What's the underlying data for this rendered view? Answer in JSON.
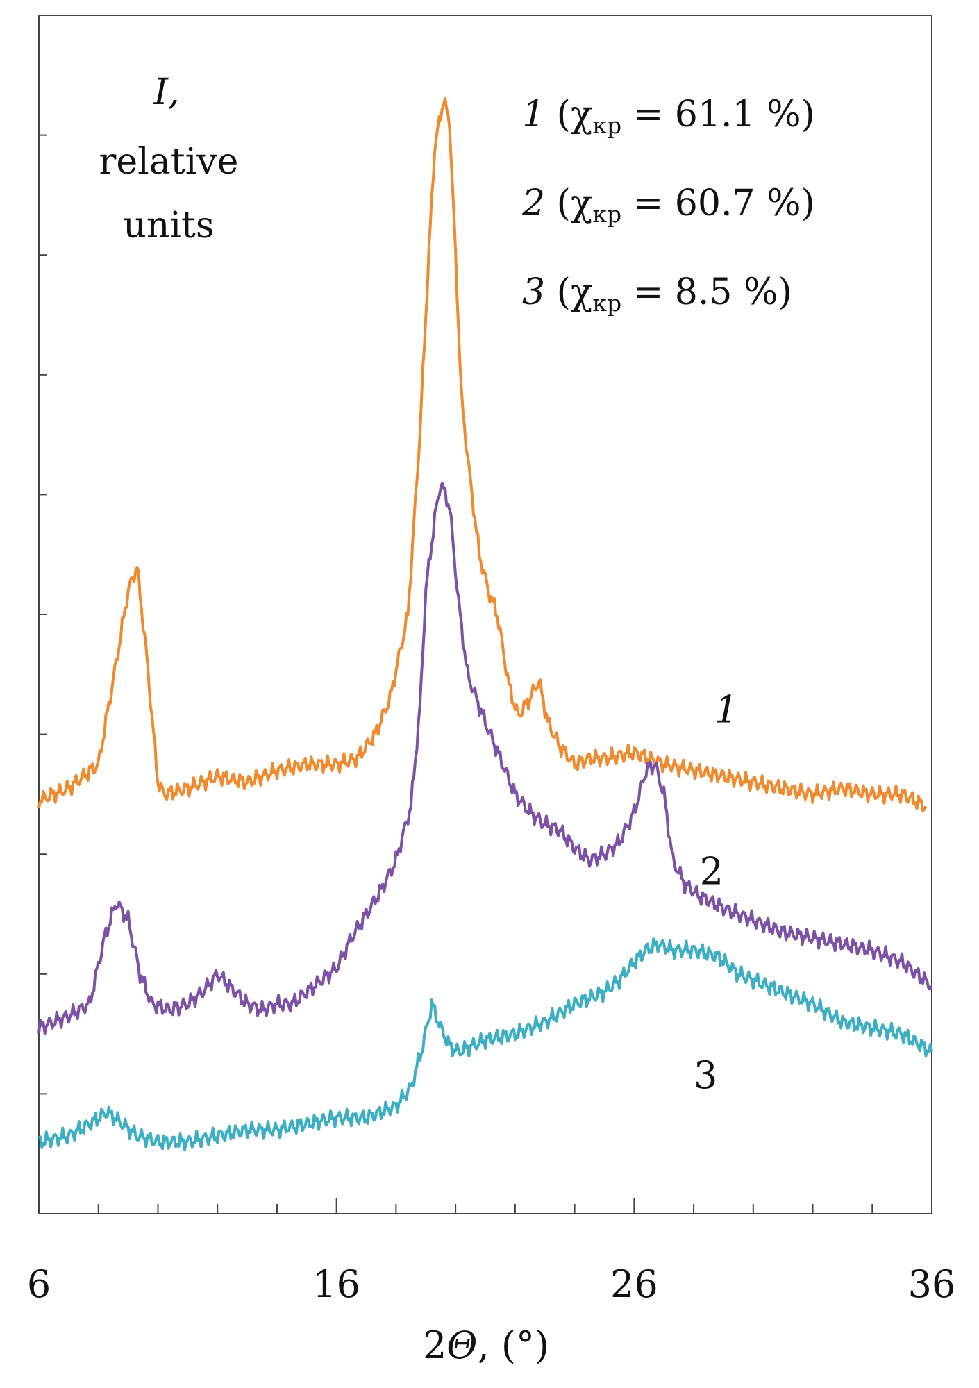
{
  "chart_data": {
    "type": "line",
    "title": "",
    "xlabel": {
      "prefix": "2",
      "symbol": "Θ",
      "suffix": ", (°)"
    },
    "ylabel": {
      "symbol": "I,",
      "line1": "relative",
      "line2": "units"
    },
    "xlim": [
      6,
      36
    ],
    "ylim": [
      0,
      10
    ],
    "x_ticks": [
      6,
      16,
      26,
      36
    ],
    "x_tick_labels": [
      "6",
      "16",
      "26",
      "36"
    ],
    "grid": false,
    "legend_position": "top-right",
    "legend": [
      {
        "num": "1",
        "open": " (χ",
        "sub": "кр",
        "close": " = 61.1 %)"
      },
      {
        "num": "2",
        "open": " (χ",
        "sub": "кр",
        "close": " = 60.7 %)"
      },
      {
        "num": "3",
        "open": " (χ",
        "sub": "кр",
        "close": " = 8.5 %)"
      }
    ],
    "series": [
      {
        "name": "1",
        "color": "#F08A2F",
        "x": [
          6,
          7,
          8,
          8.6,
          9.0,
          9.3,
          9.6,
          10.0,
          10.2,
          11,
          12,
          13,
          14,
          15,
          16,
          16.7,
          17.3,
          17.8,
          18.4,
          18.8,
          19.1,
          19.3,
          19.6,
          19.8,
          20.0,
          20.2,
          20.5,
          20.8,
          21.1,
          21.4,
          21.8,
          22.1,
          22.5,
          22.8,
          23.1,
          23.5,
          24.0,
          24.5,
          25.0,
          26,
          27,
          28,
          29,
          30,
          31,
          32,
          33,
          34,
          35,
          35.8
        ],
        "y": [
          3.45,
          3.55,
          3.75,
          4.6,
          5.2,
          5.4,
          4.7,
          3.6,
          3.5,
          3.55,
          3.65,
          3.6,
          3.7,
          3.75,
          3.75,
          3.8,
          4.0,
          4.3,
          5.0,
          6.5,
          8.0,
          8.9,
          9.3,
          9.1,
          8.0,
          6.8,
          6.1,
          5.5,
          5.2,
          5.0,
          4.4,
          4.15,
          4.3,
          4.45,
          4.1,
          3.9,
          3.75,
          3.8,
          3.8,
          3.85,
          3.75,
          3.7,
          3.65,
          3.6,
          3.55,
          3.5,
          3.55,
          3.5,
          3.5,
          3.4
        ]
      },
      {
        "name": "2",
        "color": "#7B52A6",
        "x": [
          6,
          7,
          7.7,
          8.2,
          8.6,
          9.0,
          9.4,
          9.8,
          10.4,
          11,
          11.5,
          12,
          12.6,
          13,
          13.5,
          14,
          14.5,
          15,
          15.5,
          16,
          16.5,
          17,
          17.5,
          18.0,
          18.5,
          18.8,
          19.0,
          19.3,
          19.5,
          19.8,
          20.1,
          20.4,
          20.7,
          21.0,
          21.5,
          22.0,
          22.5,
          23,
          23.5,
          24,
          24.5,
          25.0,
          25.5,
          26.0,
          26.4,
          26.7,
          27.0,
          27.3,
          27.7,
          28.2,
          29,
          30,
          31,
          32,
          33,
          34,
          35,
          36
        ],
        "y": [
          1.55,
          1.65,
          1.75,
          2.3,
          2.6,
          2.45,
          2.0,
          1.75,
          1.7,
          1.75,
          1.85,
          2.0,
          1.85,
          1.75,
          1.7,
          1.75,
          1.75,
          1.85,
          1.95,
          2.05,
          2.3,
          2.5,
          2.7,
          2.95,
          3.4,
          4.2,
          5.2,
          5.8,
          6.1,
          5.9,
          5.1,
          4.5,
          4.3,
          4.1,
          3.8,
          3.5,
          3.35,
          3.25,
          3.2,
          3.05,
          2.95,
          3.0,
          3.1,
          3.35,
          3.7,
          3.75,
          3.5,
          2.95,
          2.75,
          2.65,
          2.55,
          2.45,
          2.35,
          2.3,
          2.25,
          2.2,
          2.1,
          1.9
        ]
      },
      {
        "name": "3",
        "color": "#3DAFC4",
        "x": [
          6,
          7,
          7.7,
          8.3,
          8.8,
          9.3,
          10,
          11,
          12,
          13,
          14,
          15,
          16,
          17,
          18,
          18.5,
          18.9,
          19.2,
          19.5,
          19.8,
          20.1,
          21,
          22,
          23,
          24,
          25,
          25.5,
          26.0,
          26.4,
          26.8,
          27.3,
          28,
          28.8,
          29.5,
          30,
          31,
          32,
          33,
          34,
          35,
          36
        ],
        "y": [
          0.6,
          0.65,
          0.75,
          0.85,
          0.75,
          0.65,
          0.6,
          0.6,
          0.65,
          0.7,
          0.7,
          0.75,
          0.8,
          0.8,
          0.9,
          1.05,
          1.4,
          1.75,
          1.55,
          1.4,
          1.35,
          1.45,
          1.5,
          1.6,
          1.75,
          1.85,
          1.95,
          2.1,
          2.2,
          2.25,
          2.2,
          2.2,
          2.15,
          2.0,
          1.95,
          1.85,
          1.75,
          1.6,
          1.55,
          1.5,
          1.35
        ]
      }
    ],
    "curve_labels": [
      {
        "text": "1",
        "italic": true,
        "x": 29.1,
        "y": 4.1
      },
      {
        "text": "2",
        "italic": false,
        "x": 28.6,
        "y": 2.75
      },
      {
        "text": "3",
        "italic": false,
        "x": 28.4,
        "y": 1.05
      }
    ]
  }
}
